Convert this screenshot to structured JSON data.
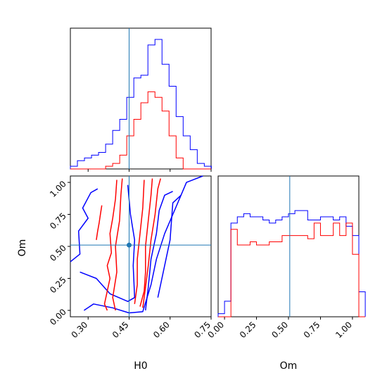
{
  "colors": {
    "series_a": "#0000ff",
    "series_b": "#ff0000",
    "truth": "#1f77b4",
    "axis": "#000000"
  },
  "chart_data": {
    "type": "corner",
    "params": [
      "H0",
      "Om"
    ],
    "truth": {
      "H0": 0.45,
      "Om": 0.51
    },
    "xlabel_H0": "H0",
    "xlabel_Om": "Om",
    "ylabel_Om": "Om",
    "ranges": {
      "H0": [
        0.235,
        0.75
      ],
      "Om": [
        -0.05,
        1.05
      ]
    },
    "ticks": {
      "H0": [
        0.3,
        0.45,
        0.6,
        0.75
      ],
      "H0_labels": [
        "0.30",
        "0.45",
        "0.60",
        "0.75"
      ],
      "Om": [
        0.0,
        0.25,
        0.5,
        0.75,
        1.0
      ],
      "Om_labels": [
        "0.00",
        "0.25",
        "0.50",
        "0.75",
        "1.00"
      ]
    },
    "hist_H0": {
      "bin_start": 0.235,
      "bin_width": 0.0258,
      "series_a": [
        1,
        3,
        4,
        5,
        6,
        9,
        14,
        18,
        26,
        33,
        34,
        45,
        47,
        38,
        30,
        19,
        12,
        7,
        2,
        1
      ],
      "series_b": [
        0,
        0,
        0,
        0,
        0,
        1,
        2,
        5,
        12,
        18,
        24,
        28,
        26,
        21,
        12,
        4,
        0,
        0,
        0,
        0
      ]
    },
    "hist_Om": {
      "bin_start": -0.05,
      "bin_width": 0.05,
      "series_a": [
        1,
        5,
        30,
        32,
        33,
        32,
        32,
        31,
        30,
        31,
        32,
        33,
        34,
        34,
        31,
        31,
        32,
        32,
        31,
        32,
        29,
        26,
        8
      ],
      "series_b": [
        0,
        0,
        28,
        23,
        23,
        24,
        23,
        23,
        24,
        24,
        26,
        26,
        26,
        26,
        25,
        30,
        26,
        26,
        30,
        26,
        30,
        20,
        0
      ]
    },
    "contours_2d": {
      "series_a": [
        [
          [
            0.285,
            0.0
          ],
          [
            0.32,
            0.05
          ],
          [
            0.39,
            0.02
          ],
          [
            0.45,
            -0.02
          ],
          [
            0.5,
            -0.01
          ],
          [
            0.53,
            0.2
          ],
          [
            0.55,
            0.4
          ],
          [
            0.58,
            0.6
          ],
          [
            0.62,
            0.8
          ],
          [
            0.66,
            1.0
          ],
          [
            0.72,
            1.05
          ]
        ],
        [
          [
            0.235,
            0.38
          ],
          [
            0.27,
            0.44
          ],
          [
            0.265,
            0.62
          ],
          [
            0.3,
            0.72
          ],
          [
            0.28,
            0.8
          ],
          [
            0.31,
            0.92
          ],
          [
            0.335,
            0.95
          ]
        ],
        [
          [
            0.27,
            0.3
          ],
          [
            0.33,
            0.25
          ],
          [
            0.38,
            0.13
          ],
          [
            0.445,
            0.07
          ],
          [
            0.47,
            0.1
          ],
          [
            0.465,
            0.35
          ],
          [
            0.47,
            0.55
          ],
          [
            0.455,
            0.75
          ],
          [
            0.445,
            0.98
          ]
        ],
        [
          [
            0.51,
            0.0
          ],
          [
            0.52,
            0.18
          ],
          [
            0.53,
            0.4
          ],
          [
            0.55,
            0.6
          ],
          [
            0.56,
            0.78
          ],
          [
            0.58,
            0.9
          ],
          [
            0.61,
            0.93
          ]
        ],
        [
          [
            0.555,
            0.1
          ],
          [
            0.565,
            0.2
          ],
          [
            0.585,
            0.4
          ],
          [
            0.6,
            0.55
          ],
          [
            0.605,
            0.7
          ],
          [
            0.61,
            0.84
          ],
          [
            0.64,
            0.9
          ]
        ]
      ],
      "series_b": [
        [
          [
            0.37,
            0.0
          ],
          [
            0.36,
            0.05
          ],
          [
            0.37,
            0.15
          ],
          [
            0.38,
            0.25
          ],
          [
            0.37,
            0.35
          ],
          [
            0.385,
            0.45
          ],
          [
            0.38,
            0.6
          ],
          [
            0.39,
            0.72
          ],
          [
            0.4,
            0.87
          ],
          [
            0.405,
            1.02
          ]
        ],
        [
          [
            0.4,
            0.0
          ],
          [
            0.39,
            0.1
          ],
          [
            0.405,
            0.3
          ],
          [
            0.4,
            0.5
          ],
          [
            0.415,
            0.7
          ],
          [
            0.42,
            0.9
          ],
          [
            0.425,
            1.03
          ]
        ],
        [
          [
            0.5,
            0.02
          ],
          [
            0.51,
            0.18
          ],
          [
            0.52,
            0.35
          ],
          [
            0.53,
            0.55
          ],
          [
            0.545,
            0.75
          ],
          [
            0.555,
            0.95
          ],
          [
            0.565,
            1.03
          ]
        ],
        [
          [
            0.49,
            0.03
          ],
          [
            0.505,
            0.15
          ],
          [
            0.51,
            0.3
          ],
          [
            0.51,
            0.5
          ],
          [
            0.52,
            0.7
          ],
          [
            0.53,
            0.9
          ],
          [
            0.535,
            1.03
          ]
        ],
        [
          [
            0.47,
            0.05
          ],
          [
            0.48,
            0.2
          ],
          [
            0.48,
            0.4
          ],
          [
            0.49,
            0.6
          ],
          [
            0.5,
            0.8
          ],
          [
            0.505,
            1.02
          ]
        ],
        [
          [
            0.33,
            0.55
          ],
          [
            0.335,
            0.62
          ],
          [
            0.34,
            0.68
          ],
          [
            0.345,
            0.75
          ],
          [
            0.35,
            0.82
          ]
        ]
      ]
    }
  }
}
